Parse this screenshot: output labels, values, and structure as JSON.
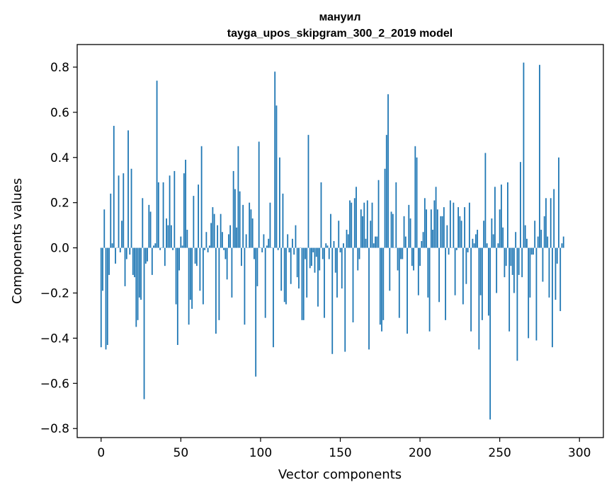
{
  "chart_data": {
    "type": "bar",
    "title": "мануил",
    "subtitle": "tayga_upos_skipgram_300_2_2019 model",
    "xlabel": "Vector components",
    "ylabel": "Components values",
    "xlim": [
      -15,
      315
    ],
    "ylim": [
      -0.84,
      0.9
    ],
    "xticks": [
      0,
      50,
      100,
      150,
      200,
      250,
      300
    ],
    "xtick_labels": [
      "0",
      "50",
      "100",
      "150",
      "200",
      "250",
      "300"
    ],
    "yticks": [
      0.8,
      0.6,
      0.4,
      0.2,
      0.0,
      -0.2,
      -0.4,
      -0.6,
      -0.8
    ],
    "ytick_labels": [
      "0.8",
      "0.6",
      "0.4",
      "0.2",
      "0.0",
      "−0.2",
      "−0.4",
      "−0.6",
      "−0.8"
    ],
    "grid": false,
    "bar_color": "#1f77b4",
    "x_start": 0,
    "values": [
      -0.44,
      -0.19,
      0.17,
      -0.45,
      -0.43,
      -0.12,
      0.24,
      0.02,
      0.54,
      -0.07,
      0.0,
      0.32,
      -0.02,
      0.12,
      0.33,
      -0.17,
      -0.05,
      0.52,
      -0.03,
      0.35,
      -0.12,
      -0.13,
      -0.35,
      -0.32,
      -0.22,
      -0.23,
      0.22,
      -0.67,
      -0.07,
      -0.06,
      0.19,
      0.16,
      -0.12,
      0.01,
      0.02,
      0.74,
      0.29,
      -0.01,
      0.0,
      0.29,
      -0.08,
      0.13,
      0.1,
      0.32,
      0.1,
      -0.01,
      0.34,
      -0.25,
      -0.43,
      -0.1,
      0.05,
      0.01,
      0.33,
      0.39,
      0.08,
      -0.34,
      -0.23,
      -0.27,
      0.23,
      -0.07,
      -0.08,
      0.28,
      -0.19,
      0.45,
      -0.25,
      -0.01,
      0.07,
      -0.02,
      0.01,
      0.11,
      0.18,
      0.15,
      -0.38,
      0.1,
      -0.32,
      0.15,
      0.07,
      -0.01,
      -0.05,
      -0.14,
      0.06,
      0.1,
      -0.22,
      0.34,
      0.26,
      0.09,
      0.45,
      0.25,
      -0.08,
      0.19,
      -0.34,
      0.06,
      0.0,
      0.2,
      0.17,
      0.13,
      -0.05,
      -0.57,
      -0.17,
      0.47,
      0.0,
      -0.02,
      0.06,
      -0.31,
      0.01,
      0.04,
      0.2,
      0.0,
      -0.44,
      0.78,
      0.63,
      -0.01,
      0.4,
      -0.19,
      0.24,
      -0.24,
      -0.25,
      0.06,
      -0.02,
      -0.16,
      0.04,
      -0.03,
      0.1,
      -0.13,
      -0.18,
      0.0,
      -0.32,
      -0.32,
      -0.05,
      -0.22,
      0.5,
      -0.09,
      -0.08,
      -0.02,
      -0.11,
      -0.04,
      -0.26,
      -0.1,
      0.29,
      -0.05,
      -0.31,
      0.02,
      0.01,
      -0.05,
      0.15,
      -0.47,
      0.03,
      -0.11,
      -0.22,
      0.12,
      -0.02,
      -0.18,
      0.02,
      -0.46,
      0.08,
      0.06,
      0.21,
      0.2,
      -0.33,
      0.22,
      0.27,
      -0.1,
      -0.05,
      0.17,
      0.14,
      0.2,
      0.04,
      0.21,
      -0.45,
      0.12,
      0.2,
      0.02,
      0.05,
      0.05,
      0.3,
      -0.34,
      -0.37,
      -0.32,
      0.35,
      0.5,
      0.68,
      -0.19,
      0.16,
      0.15,
      0.0,
      0.29,
      -0.1,
      -0.31,
      -0.05,
      -0.05,
      0.14,
      0.05,
      -0.38,
      0.19,
      0.13,
      -0.08,
      -0.1,
      0.45,
      0.4,
      -0.21,
      -0.08,
      0.03,
      0.07,
      0.22,
      0.17,
      -0.22,
      -0.37,
      0.17,
      0.08,
      0.21,
      0.27,
      0.17,
      -0.24,
      0.14,
      0.14,
      0.18,
      -0.32,
      0.1,
      -0.03,
      0.21,
      0.0,
      0.2,
      -0.21,
      -0.01,
      0.18,
      0.14,
      0.12,
      -0.25,
      0.18,
      -0.16,
      -0.02,
      0.2,
      -0.37,
      0.04,
      0.02,
      0.06,
      0.08,
      -0.45,
      -0.21,
      -0.32,
      0.12,
      0.42,
      0.02,
      -0.3,
      -0.76,
      0.13,
      0.06,
      0.27,
      -0.2,
      0.02,
      0.17,
      0.28,
      0.09,
      -0.13,
      -0.08,
      0.29,
      -0.37,
      -0.08,
      -0.12,
      -0.2,
      0.07,
      -0.5,
      -0.12,
      0.38,
      -0.13,
      0.82,
      0.1,
      0.04,
      -0.4,
      -0.22,
      -0.03,
      -0.03,
      0.12,
      -0.41,
      0.05,
      0.81,
      0.08,
      -0.15,
      0.14,
      0.22,
      0.05,
      -0.22,
      0.22,
      -0.44,
      0.26,
      -0.23,
      -0.07,
      0.4,
      -0.28,
      0.02,
      0.05
    ]
  }
}
